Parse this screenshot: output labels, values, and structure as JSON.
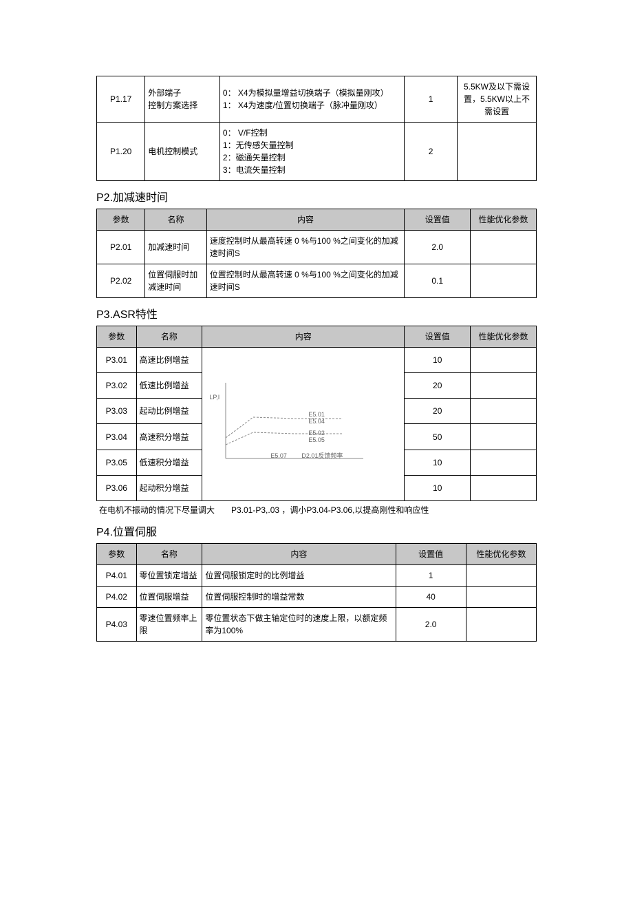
{
  "colors": {
    "header_bg": "#c7c7c7",
    "border": "#000000",
    "text": "#000000",
    "background": "#ffffff",
    "diagram_line": "#888888"
  },
  "t_top": {
    "col_widths_pct": [
      11,
      17,
      42,
      12,
      18
    ],
    "rows": [
      {
        "param": "P1.17",
        "name": "外部端子\n控制方案选择",
        "content": "0： X4为模拟量增益切换端子（模拟量刚攻）\n1： X4为速度/位置切换端子（脉冲量刚攻）",
        "value": "1",
        "note": "5.5KW及以下需设置，5.5KW以上不需设置"
      },
      {
        "param": "P1.20",
        "name": "电机控制模式",
        "content": "0： V/F控制\n1：无传感矢量控制\n2：磁通矢量控制\n3：电流矢量控制",
        "value": "2",
        "note": ""
      }
    ]
  },
  "p2": {
    "title": "P2.加减速时间",
    "headers": [
      "参数",
      "名称",
      "内容",
      "设置值",
      "性能优化参数"
    ],
    "col_widths_pct": [
      11,
      14,
      45,
      15,
      15
    ],
    "rows": [
      {
        "param": "P2.01",
        "name": "加减速时间",
        "content": "速度控制时从最高转速 0 %与100 %之间变化的加减速时间S",
        "value": "2.0",
        "note": ""
      },
      {
        "param": "P2.02",
        "name": "位置伺服时加减速时间",
        "content": "位置控制时从最高转速 0 %与100 %之间变化的加减速时间S",
        "value": "0.1",
        "note": ""
      }
    ]
  },
  "p3": {
    "title": "P3.ASR特性",
    "headers": [
      "参数",
      "名称",
      "内容",
      "设置值",
      "性能优化参数"
    ],
    "col_widths_pct": [
      9,
      15,
      46,
      15,
      15
    ],
    "rows": [
      {
        "param": "P3.01",
        "name": "高速比例增益",
        "value": "10",
        "note": ""
      },
      {
        "param": "P3.02",
        "name": "低速比例增益",
        "value": "20",
        "note": ""
      },
      {
        "param": "P3.03",
        "name": "起动比例增益",
        "value": "20",
        "note": ""
      },
      {
        "param": "P3.04",
        "name": "高速积分增益",
        "value": "50",
        "note": ""
      },
      {
        "param": "P3.05",
        "name": "低速积分增益",
        "value": "10",
        "note": ""
      },
      {
        "param": "P3.06",
        "name": "起动积分增益",
        "value": "10",
        "note": ""
      }
    ],
    "diagram": {
      "axis_label": "LP,I",
      "labels": [
        "E5.01",
        "E5.04",
        "E5.02",
        "E5.05",
        "E5.07",
        "D2.01反馈频率"
      ]
    },
    "below_note": "在电机不振动的情况下尽量调大　　P3.01-P3,.03 ，调小P3.04-P3.06,以提高刚性和响应性"
  },
  "p4": {
    "title": "P4.位置伺服",
    "headers": [
      "参数",
      "名称",
      "内容",
      "设置值",
      "性能优化参数"
    ],
    "col_widths_pct": [
      9,
      15,
      44,
      16,
      16
    ],
    "rows": [
      {
        "param": "P4.01",
        "name": "零位置锁定增益",
        "content": "位置伺服锁定时的比例增益",
        "value": "1",
        "note": ""
      },
      {
        "param": "P4.02",
        "name": "位置伺服增益",
        "content": "位置伺服控制时的增益常数",
        "value": "40",
        "note": ""
      },
      {
        "param": "P4.03",
        "name": "零速位置频率上限",
        "content": "零位置状态下做主轴定位时的速度上限，以额定频率为100%",
        "value": "2.0",
        "note": ""
      }
    ]
  }
}
